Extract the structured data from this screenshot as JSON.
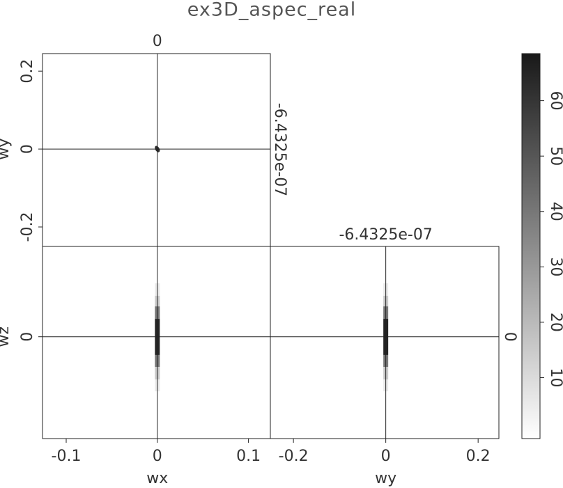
{
  "chart_data": {
    "type": "cube",
    "title": "ex3D_aspec_real",
    "axes": {
      "wx": {
        "label": "wx",
        "lim": [
          -0.126,
          0.124
        ],
        "ticks": [
          -0.1,
          0,
          0.1
        ]
      },
      "wy": {
        "label": "wy",
        "lim": [
          -0.25,
          0.245
        ],
        "ticks": [
          -0.2,
          0,
          0.2
        ]
      },
      "wz": {
        "label": "wz",
        "lim": [
          -0.53,
          0.47
        ],
        "ticks": [
          0
        ]
      }
    },
    "slices": {
      "wx": 0,
      "wy": {
        "value": -6.4325e-07,
        "label": "-6.4325e-07"
      },
      "wz": 0
    },
    "colorbar": {
      "lim": [
        -1,
        68.5
      ],
      "ticks": [
        10,
        20,
        30,
        40,
        50,
        60
      ]
    },
    "panels": {
      "front": {
        "x": 0,
        "y": 0,
        "value": 62
      },
      "side": {
        "x": 0,
        "edges": [
          0.278,
          0.213,
          0.158,
          0.093,
          -0.095,
          -0.157,
          -0.222,
          -0.284
        ],
        "values": [
          5,
          15,
          40,
          65,
          40,
          15,
          5
        ]
      },
      "top": {
        "x": 0,
        "edges": [
          0.278,
          0.213,
          0.158,
          0.093,
          -0.095,
          -0.157,
          -0.222,
          -0.284
        ],
        "values": [
          5,
          15,
          40,
          65,
          40,
          15,
          5
        ]
      }
    }
  }
}
